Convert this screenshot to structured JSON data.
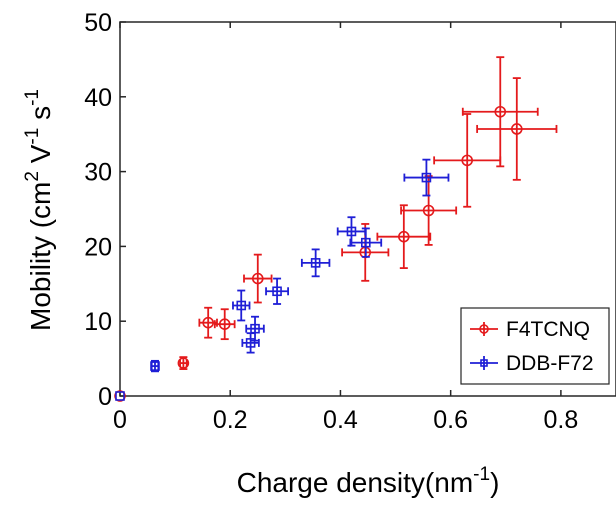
{
  "chart_data": {
    "type": "scatter",
    "xlabel": "Charge density(nm",
    "xlabel_sup": "-1",
    "xlabel_suffix": ")",
    "ylabel_parts": [
      "Mobility (cm",
      "2",
      " V",
      "-1",
      " s",
      "-1"
    ],
    "xlim": [
      0,
      0.9
    ],
    "ylim": [
      0,
      50
    ],
    "x_ticks": [
      0,
      0.2,
      0.4,
      0.6,
      0.8
    ],
    "x_tick_labels": [
      "0",
      "0.2",
      "0.4",
      "0.6",
      "0.8"
    ],
    "y_ticks": [
      0,
      10,
      20,
      30,
      40,
      50
    ],
    "y_tick_labels": [
      "0",
      "10",
      "20",
      "30",
      "40",
      "50"
    ],
    "grid": false,
    "legend_position": "bottom-right",
    "series": [
      {
        "name": "F4TCNQ",
        "color": "#e41a1c",
        "marker": "circle",
        "points": [
          {
            "x": 0.0,
            "y": 0.0,
            "xerr": 0.0,
            "yerr": 0.0
          },
          {
            "x": 0.115,
            "y": 4.4,
            "xerr": 0.006,
            "yerr": 0.8
          },
          {
            "x": 0.16,
            "y": 9.8,
            "xerr": 0.016,
            "yerr": 2.0
          },
          {
            "x": 0.19,
            "y": 9.6,
            "xerr": 0.018,
            "yerr": 2.0
          },
          {
            "x": 0.25,
            "y": 15.7,
            "xerr": 0.025,
            "yerr": 3.2
          },
          {
            "x": 0.445,
            "y": 19.2,
            "xerr": 0.042,
            "yerr": 3.8
          },
          {
            "x": 0.515,
            "y": 21.3,
            "xerr": 0.048,
            "yerr": 4.2
          },
          {
            "x": 0.56,
            "y": 24.8,
            "xerr": 0.05,
            "yerr": 4.6
          },
          {
            "x": 0.63,
            "y": 31.5,
            "xerr": 0.06,
            "yerr": 6.2
          },
          {
            "x": 0.69,
            "y": 38.0,
            "xerr": 0.068,
            "yerr": 7.3
          },
          {
            "x": 0.72,
            "y": 35.7,
            "xerr": 0.072,
            "yerr": 6.8
          }
        ]
      },
      {
        "name": "DDB-F72",
        "color": "#1f1fd6",
        "marker": "square",
        "points": [
          {
            "x": 0.0,
            "y": 0.0,
            "xerr": 0.0,
            "yerr": 0.0
          },
          {
            "x": 0.0635,
            "y": 4.0,
            "xerr": 0.006,
            "yerr": 0.7
          },
          {
            "x": 0.22,
            "y": 12.1,
            "xerr": 0.015,
            "yerr": 2.0
          },
          {
            "x": 0.237,
            "y": 7.1,
            "xerr": 0.015,
            "yerr": 1.3
          },
          {
            "x": 0.245,
            "y": 9.0,
            "xerr": 0.016,
            "yerr": 1.6
          },
          {
            "x": 0.285,
            "y": 14.0,
            "xerr": 0.02,
            "yerr": 1.7
          },
          {
            "x": 0.355,
            "y": 17.8,
            "xerr": 0.025,
            "yerr": 1.8
          },
          {
            "x": 0.42,
            "y": 22.0,
            "xerr": 0.025,
            "yerr": 1.9
          },
          {
            "x": 0.446,
            "y": 20.5,
            "xerr": 0.028,
            "yerr": 1.9
          },
          {
            "x": 0.556,
            "y": 29.2,
            "xerr": 0.04,
            "yerr": 2.4
          }
        ]
      }
    ]
  }
}
